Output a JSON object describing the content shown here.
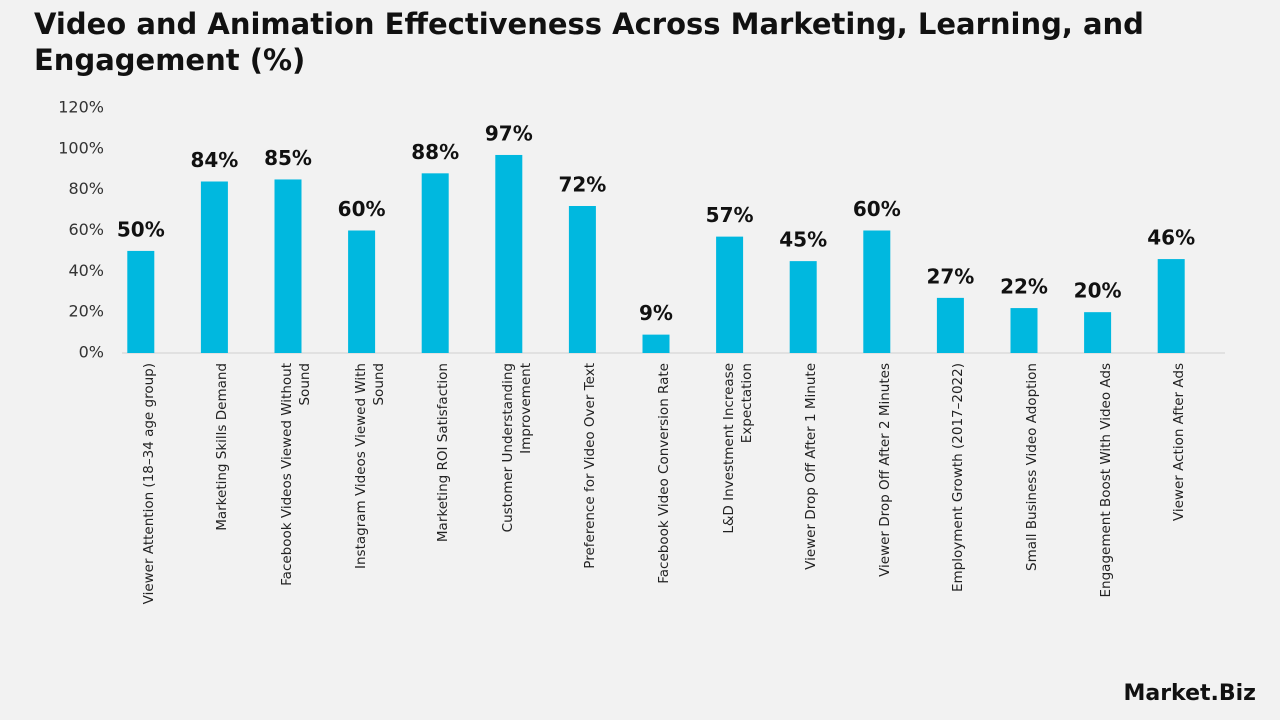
{
  "chart_data": {
    "type": "bar",
    "title": "Video and Animation Effectiveness Across Marketing, Learning, and Engagement (%)",
    "categories": [
      "Viewer Attention (18–34 age group)",
      "Marketing Skills Demand",
      "Facebook Videos Viewed Without Sound",
      "Instagram Videos Viewed With Sound",
      "Marketing ROI Satisfaction",
      "Customer Understanding Improvement",
      "Preference for Video Over Text",
      "Facebook Video Conversion Rate",
      "L&D Investment Increase Expectation",
      "Viewer Drop Off After 1 Minute",
      "Viewer Drop Off After 2 Minutes",
      "Employment Growth (2017–2022)",
      "Small Business Video Adoption",
      "Engagement Boost With Video Ads",
      "Viewer Action After Ads"
    ],
    "values": [
      50,
      84,
      85,
      60,
      88,
      97,
      72,
      9,
      57,
      45,
      60,
      27,
      22,
      20,
      46
    ],
    "value_labels": [
      "50%",
      "84%",
      "85%",
      "60%",
      "88%",
      "97%",
      "72%",
      "9%",
      "57%",
      "45%",
      "60%",
      "27%",
      "22%",
      "20%",
      "46%"
    ],
    "color": "#00b8df",
    "ylim": [
      0,
      120
    ],
    "yticks": [
      {
        "value": 0,
        "label": "0%"
      },
      {
        "value": 20,
        "label": "20%"
      },
      {
        "value": 40,
        "label": "40%"
      },
      {
        "value": 60,
        "label": "60%"
      },
      {
        "value": 80,
        "label": "80%"
      },
      {
        "value": 100,
        "label": "100%"
      },
      {
        "value": 120,
        "label": "120%"
      }
    ],
    "grid": false
  },
  "brand": "Market.Biz"
}
